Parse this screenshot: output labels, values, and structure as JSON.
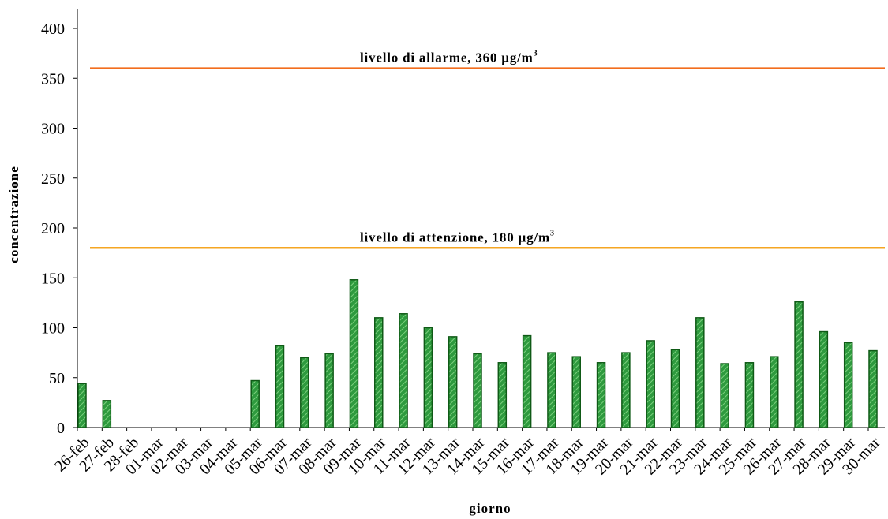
{
  "chart_data": {
    "type": "bar",
    "title": "",
    "xlabel": "giorno",
    "ylabel": "concentrazione",
    "ylim": [
      0,
      400
    ],
    "yticks": [
      0,
      50,
      100,
      150,
      200,
      250,
      300,
      350,
      400
    ],
    "grid": false,
    "legend": "none",
    "categories": [
      "26-feb",
      "27-feb",
      "28-feb",
      "01-mar",
      "02-mar",
      "03-mar",
      "04-mar",
      "05-mar",
      "06-mar",
      "07-mar",
      "08-mar",
      "09-mar",
      "10-mar",
      "11-mar",
      "12-mar",
      "13-mar",
      "14-mar",
      "15-mar",
      "16-mar",
      "17-mar",
      "18-mar",
      "19-mar",
      "20-mar",
      "21-mar",
      "22-mar",
      "23-mar",
      "24-mar",
      "25-mar",
      "26-mar",
      "27-mar",
      "28-mar",
      "29-mar",
      "30-mar"
    ],
    "values": [
      44,
      27,
      null,
      null,
      null,
      null,
      null,
      47,
      82,
      70,
      74,
      148,
      110,
      114,
      100,
      91,
      74,
      65,
      92,
      75,
      71,
      65,
      75,
      87,
      78,
      110,
      64,
      65,
      71,
      126,
      96,
      85,
      77
    ],
    "reference_lines": [
      {
        "value": 360,
        "label": "livello di allarme,   360 µg/m",
        "superscript": "3",
        "color": "#f26d1d"
      },
      {
        "value": 180,
        "label": "livello di attenzione,  180 µg/m",
        "superscript": "3",
        "color": "#f5a623"
      }
    ],
    "colors": {
      "bar_fill": "#2e9a3e",
      "bar_stroke": "#0f5a16",
      "bar_stripe": "#7ccf7e",
      "axis": "#000000"
    }
  }
}
